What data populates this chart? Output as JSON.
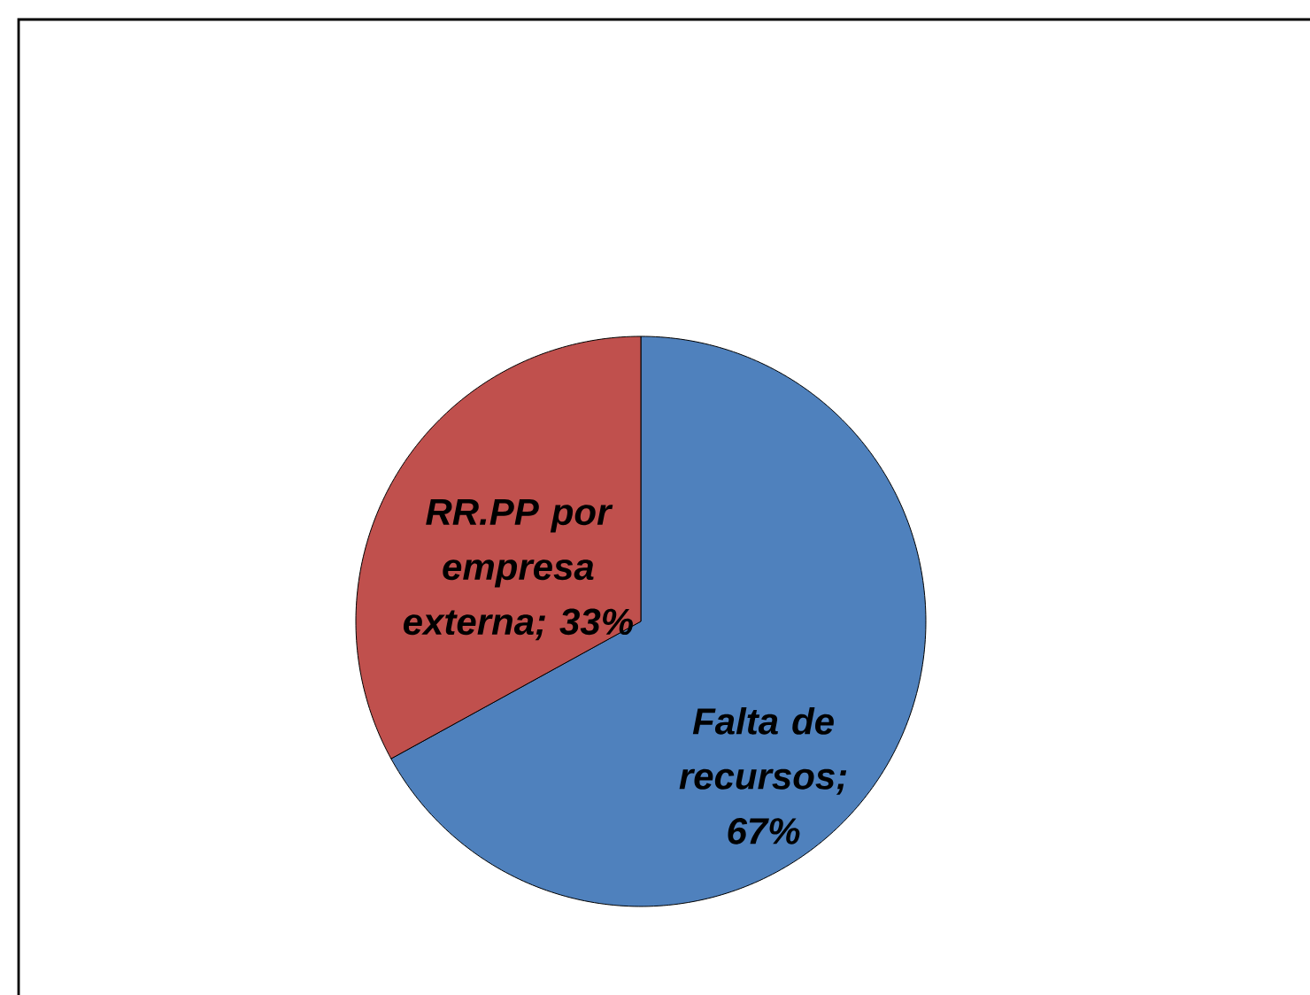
{
  "chart_data": {
    "type": "pie",
    "categories": [
      "Falta de recursos; 67%",
      "RR.PP por empresa externa; 33%"
    ],
    "values": [
      67,
      33
    ],
    "colors": [
      "#4f81bd",
      "#c0504d"
    ]
  }
}
